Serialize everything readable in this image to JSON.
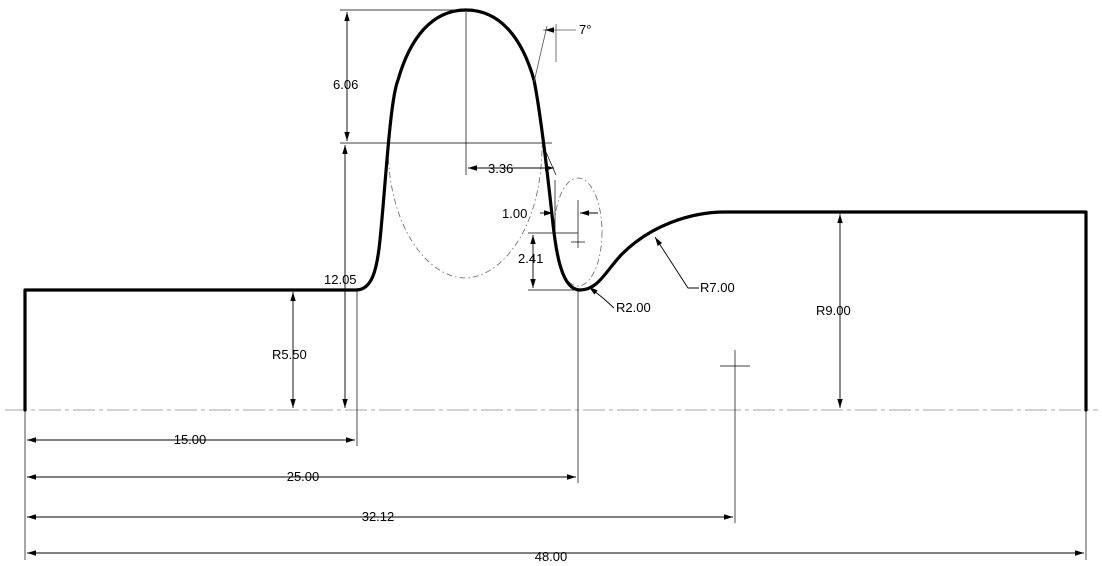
{
  "drawing": {
    "dimensions": {
      "len_15": "15.00",
      "len_25": "25.00",
      "len_32": "32.12",
      "len_48": "48.00",
      "r_5_5": "R5.50",
      "r_9": "R9.00",
      "r_7": "R7.00",
      "r_2": "R2.00",
      "h_6_06": "6.06",
      "h_12_05": "12.05",
      "w_3_36": "3.36",
      "d_1_00": "1.00",
      "d_2_41": "2.41",
      "angle_7": "7°"
    }
  }
}
